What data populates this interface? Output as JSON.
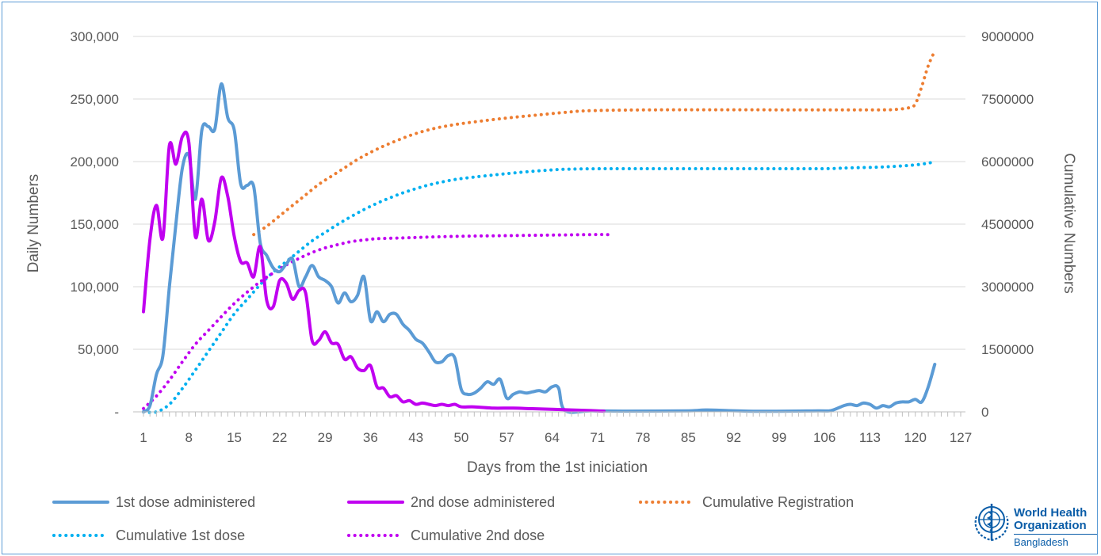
{
  "chart_data": {
    "type": "line",
    "title": "",
    "xlabel": "Days from the 1st iniciation",
    "ylabel": "Daily Numbers",
    "y2label": "Cumulative Numbers",
    "xlim": [
      1,
      127
    ],
    "ylim": [
      0,
      300000
    ],
    "y2lim": [
      0,
      9000000
    ],
    "x_ticks": [
      1,
      8,
      15,
      22,
      29,
      36,
      43,
      50,
      57,
      64,
      71,
      78,
      85,
      92,
      99,
      106,
      113,
      120,
      127
    ],
    "y_ticks": [
      {
        "value": 0,
        "label": "-"
      },
      {
        "value": 50000,
        "label": "50,000"
      },
      {
        "value": 100000,
        "label": "100,000"
      },
      {
        "value": 150000,
        "label": "150,000"
      },
      {
        "value": 200000,
        "label": "200,000"
      },
      {
        "value": 250000,
        "label": "250,000"
      },
      {
        "value": 300000,
        "label": "300,000"
      }
    ],
    "y2_ticks": [
      {
        "value": 0,
        "label": "0"
      },
      {
        "value": 1500000,
        "label": "1500000"
      },
      {
        "value": 3000000,
        "label": "3000000"
      },
      {
        "value": 4500000,
        "label": "4500000"
      },
      {
        "value": 6000000,
        "label": "6000000"
      },
      {
        "value": 7500000,
        "label": "7500000"
      },
      {
        "value": 9000000,
        "label": "9000000"
      }
    ],
    "grid": "horizontal",
    "legend_position": "bottom",
    "series": [
      {
        "name": "1st dose administered",
        "axis": "left",
        "style": "solid",
        "color": "#5b9bd5",
        "points": [
          [
            1,
            0
          ],
          [
            2,
            5000
          ],
          [
            3,
            30000
          ],
          [
            4,
            45000
          ],
          [
            5,
            100000
          ],
          [
            6,
            150000
          ],
          [
            7,
            195000
          ],
          [
            8,
            205000
          ],
          [
            9,
            170000
          ],
          [
            10,
            225000
          ],
          [
            11,
            228000
          ],
          [
            12,
            226000
          ],
          [
            13,
            262000
          ],
          [
            14,
            235000
          ],
          [
            15,
            225000
          ],
          [
            16,
            182000
          ],
          [
            17,
            181000
          ],
          [
            18,
            180000
          ],
          [
            19,
            135000
          ],
          [
            20,
            125000
          ],
          [
            21,
            115000
          ],
          [
            22,
            112000
          ],
          [
            23,
            118000
          ],
          [
            24,
            122000
          ],
          [
            25,
            100000
          ],
          [
            26,
            108000
          ],
          [
            27,
            117000
          ],
          [
            28,
            108000
          ],
          [
            29,
            105000
          ],
          [
            30,
            100000
          ],
          [
            31,
            87000
          ],
          [
            32,
            95000
          ],
          [
            33,
            88000
          ],
          [
            34,
            93000
          ],
          [
            35,
            108000
          ],
          [
            36,
            73000
          ],
          [
            37,
            80000
          ],
          [
            38,
            72000
          ],
          [
            39,
            78000
          ],
          [
            40,
            78000
          ],
          [
            41,
            70000
          ],
          [
            42,
            65000
          ],
          [
            43,
            58000
          ],
          [
            44,
            55000
          ],
          [
            45,
            48000
          ],
          [
            46,
            40000
          ],
          [
            47,
            40000
          ],
          [
            48,
            45000
          ],
          [
            49,
            43000
          ],
          [
            50,
            18000
          ],
          [
            51,
            14000
          ],
          [
            52,
            15000
          ],
          [
            53,
            19000
          ],
          [
            54,
            24000
          ],
          [
            55,
            22000
          ],
          [
            56,
            26000
          ],
          [
            57,
            11000
          ],
          [
            58,
            14000
          ],
          [
            59,
            16000
          ],
          [
            60,
            15000
          ],
          [
            61,
            16000
          ],
          [
            62,
            17000
          ],
          [
            63,
            16000
          ],
          [
            64,
            20000
          ],
          [
            65,
            19000
          ],
          [
            66,
            1000
          ],
          [
            70,
            800
          ],
          [
            75,
            600
          ],
          [
            85,
            800
          ],
          [
            88,
            1500
          ],
          [
            95,
            500
          ],
          [
            105,
            800
          ],
          [
            107,
            1000
          ],
          [
            109,
            5000
          ],
          [
            110,
            6000
          ],
          [
            111,
            5000
          ],
          [
            112,
            7000
          ],
          [
            113,
            6000
          ],
          [
            114,
            3000
          ],
          [
            115,
            5000
          ],
          [
            116,
            4000
          ],
          [
            117,
            7000
          ],
          [
            118,
            8000
          ],
          [
            119,
            8000
          ],
          [
            120,
            10000
          ],
          [
            121,
            8000
          ],
          [
            122,
            20000
          ],
          [
            123,
            38000
          ]
        ]
      },
      {
        "name": "2nd dose administered",
        "axis": "left",
        "style": "solid",
        "color": "#c000f0",
        "points": [
          [
            1,
            80000
          ],
          [
            2,
            138000
          ],
          [
            3,
            165000
          ],
          [
            4,
            139000
          ],
          [
            5,
            213000
          ],
          [
            6,
            198000
          ],
          [
            7,
            220000
          ],
          [
            8,
            215000
          ],
          [
            9,
            140000
          ],
          [
            10,
            170000
          ],
          [
            11,
            137000
          ],
          [
            12,
            152000
          ],
          [
            13,
            187000
          ],
          [
            14,
            172000
          ],
          [
            15,
            140000
          ],
          [
            16,
            120000
          ],
          [
            17,
            119000
          ],
          [
            18,
            108000
          ],
          [
            19,
            132000
          ],
          [
            20,
            89000
          ],
          [
            21,
            84000
          ],
          [
            22,
            105000
          ],
          [
            23,
            103000
          ],
          [
            24,
            90000
          ],
          [
            25,
            97000
          ],
          [
            26,
            95000
          ],
          [
            27,
            57000
          ],
          [
            28,
            57000
          ],
          [
            29,
            64000
          ],
          [
            30,
            55000
          ],
          [
            31,
            54000
          ],
          [
            32,
            42000
          ],
          [
            33,
            44000
          ],
          [
            34,
            35000
          ],
          [
            35,
            33000
          ],
          [
            36,
            37000
          ],
          [
            37,
            20000
          ],
          [
            38,
            19000
          ],
          [
            39,
            12000
          ],
          [
            40,
            13000
          ],
          [
            41,
            8000
          ],
          [
            42,
            9000
          ],
          [
            43,
            6000
          ],
          [
            44,
            7000
          ],
          [
            45,
            6000
          ],
          [
            46,
            5000
          ],
          [
            47,
            6000
          ],
          [
            48,
            5000
          ],
          [
            49,
            6000
          ],
          [
            50,
            4000
          ],
          [
            52,
            4000
          ],
          [
            55,
            3000
          ],
          [
            58,
            3000
          ],
          [
            61,
            2500
          ],
          [
            64,
            2000
          ],
          [
            67,
            1500
          ],
          [
            70,
            1000
          ],
          [
            72,
            500
          ]
        ]
      },
      {
        "name": "Cumulative Registration",
        "axis": "right",
        "style": "dotted",
        "color": "#ed7d31",
        "points": [
          [
            18,
            4250000
          ],
          [
            20,
            4450000
          ],
          [
            22,
            4700000
          ],
          [
            24,
            4950000
          ],
          [
            26,
            5200000
          ],
          [
            28,
            5450000
          ],
          [
            30,
            5650000
          ],
          [
            32,
            5850000
          ],
          [
            34,
            6050000
          ],
          [
            36,
            6220000
          ],
          [
            38,
            6370000
          ],
          [
            40,
            6500000
          ],
          [
            42,
            6620000
          ],
          [
            44,
            6720000
          ],
          [
            46,
            6800000
          ],
          [
            48,
            6860000
          ],
          [
            50,
            6910000
          ],
          [
            54,
            6990000
          ],
          [
            58,
            7060000
          ],
          [
            62,
            7120000
          ],
          [
            66,
            7180000
          ],
          [
            70,
            7220000
          ],
          [
            80,
            7240000
          ],
          [
            100,
            7240000
          ],
          [
            110,
            7240000
          ],
          [
            115,
            7240000
          ],
          [
            117,
            7250000
          ],
          [
            119,
            7290000
          ],
          [
            120,
            7380000
          ],
          [
            121,
            7800000
          ],
          [
            122,
            8300000
          ],
          [
            123,
            8650000
          ]
        ]
      },
      {
        "name": "Cumulative 1st dose",
        "axis": "right",
        "style": "dotted",
        "color": "#00b0f0",
        "points": [
          [
            1,
            0
          ],
          [
            3,
            0
          ],
          [
            5,
            180000
          ],
          [
            7,
            560000
          ],
          [
            9,
            1000000
          ],
          [
            11,
            1450000
          ],
          [
            13,
            1900000
          ],
          [
            15,
            2350000
          ],
          [
            17,
            2700000
          ],
          [
            19,
            3050000
          ],
          [
            21,
            3350000
          ],
          [
            23,
            3600000
          ],
          [
            25,
            3850000
          ],
          [
            27,
            4100000
          ],
          [
            29,
            4300000
          ],
          [
            31,
            4500000
          ],
          [
            33,
            4680000
          ],
          [
            35,
            4850000
          ],
          [
            37,
            5000000
          ],
          [
            39,
            5130000
          ],
          [
            41,
            5250000
          ],
          [
            43,
            5350000
          ],
          [
            45,
            5440000
          ],
          [
            47,
            5510000
          ],
          [
            49,
            5570000
          ],
          [
            51,
            5610000
          ],
          [
            55,
            5680000
          ],
          [
            59,
            5740000
          ],
          [
            63,
            5790000
          ],
          [
            67,
            5820000
          ],
          [
            75,
            5830000
          ],
          [
            90,
            5830000
          ],
          [
            105,
            5830000
          ],
          [
            110,
            5850000
          ],
          [
            115,
            5870000
          ],
          [
            120,
            5920000
          ],
          [
            123,
            5990000
          ]
        ]
      },
      {
        "name": "Cumulative 2nd dose",
        "axis": "right",
        "style": "dotted",
        "color": "#c000f0",
        "points": [
          [
            1,
            80000
          ],
          [
            3,
            380000
          ],
          [
            5,
            760000
          ],
          [
            7,
            1200000
          ],
          [
            9,
            1620000
          ],
          [
            11,
            1950000
          ],
          [
            13,
            2280000
          ],
          [
            15,
            2600000
          ],
          [
            17,
            2870000
          ],
          [
            19,
            3120000
          ],
          [
            21,
            3330000
          ],
          [
            23,
            3520000
          ],
          [
            25,
            3680000
          ],
          [
            27,
            3820000
          ],
          [
            29,
            3930000
          ],
          [
            31,
            4010000
          ],
          [
            33,
            4080000
          ],
          [
            35,
            4120000
          ],
          [
            37,
            4150000
          ],
          [
            41,
            4170000
          ],
          [
            45,
            4190000
          ],
          [
            50,
            4210000
          ],
          [
            55,
            4220000
          ],
          [
            60,
            4230000
          ],
          [
            65,
            4240000
          ],
          [
            70,
            4250000
          ],
          [
            73,
            4250000
          ]
        ]
      }
    ]
  },
  "logo": {
    "line1": "World Health",
    "line2": "Organization",
    "line3": "Bangladesh"
  }
}
